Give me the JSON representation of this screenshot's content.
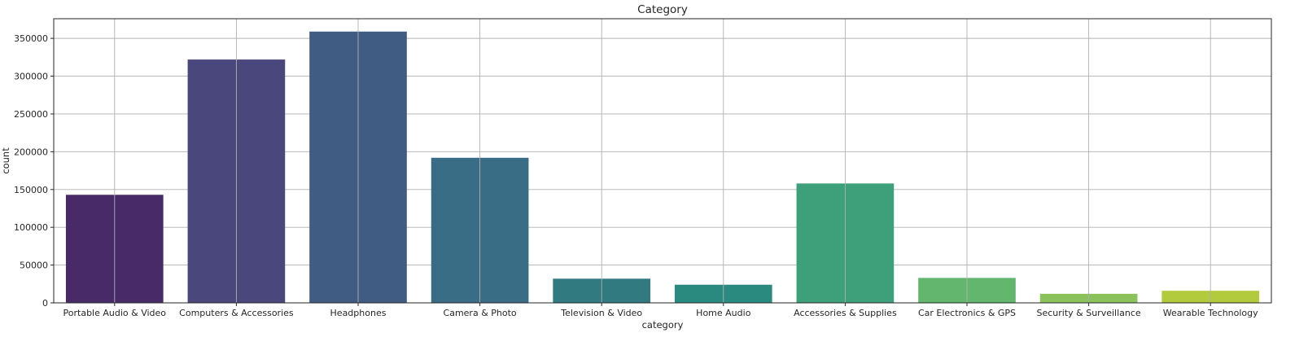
{
  "chart_data": {
    "type": "bar",
    "title": "Category",
    "xlabel": "category",
    "ylabel": "count",
    "categories": [
      "Portable Audio & Video",
      "Computers & Accessories",
      "Headphones",
      "Camera & Photo",
      "Television & Video",
      "Home Audio",
      "Accessories & Supplies",
      "Car Electronics & GPS",
      "Security & Surveillance",
      "Wearable Technology"
    ],
    "values": [
      143000,
      322000,
      359000,
      192000,
      32000,
      24000,
      158000,
      33000,
      12000,
      16000
    ],
    "colors": [
      "#482a69",
      "#4a477d",
      "#415c82",
      "#396c85",
      "#307a80",
      "#2b8a80",
      "#3ea07a",
      "#63b66e",
      "#8bc25c",
      "#b2cb3c"
    ],
    "ylim": [
      0,
      376000
    ],
    "yticks": [
      0,
      50000,
      100000,
      150000,
      200000,
      250000,
      300000,
      350000
    ],
    "grid": true,
    "legend": "none"
  }
}
